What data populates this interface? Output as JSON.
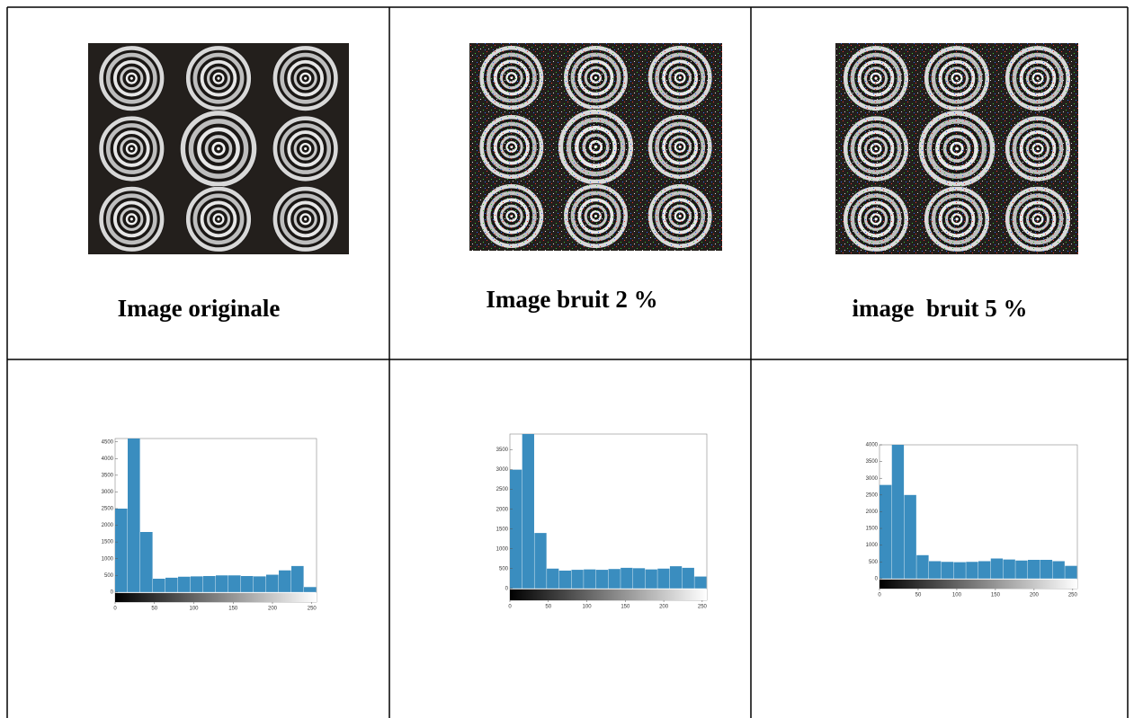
{
  "captions": [
    "Image originale",
    "Image bruit 2 %",
    "image  bruit 5 %"
  ],
  "chart_data": [
    {
      "type": "histogram",
      "color": "#3a8dbf",
      "bins": [
        0,
        16,
        32,
        48,
        64,
        80,
        96,
        112,
        128,
        144,
        160,
        176,
        192,
        208,
        224,
        240,
        256
      ],
      "values": [
        2500,
        4600,
        1800,
        400,
        430,
        460,
        470,
        480,
        500,
        500,
        480,
        470,
        520,
        650,
        780,
        150
      ],
      "xlim": [
        0,
        256
      ],
      "ylim": [
        -300,
        4600
      ],
      "xticks": [
        0,
        50,
        100,
        150,
        200,
        250
      ],
      "yticks": [
        0,
        500,
        1000,
        1500,
        2000,
        2500,
        3000,
        3500,
        4000,
        4500
      ]
    },
    {
      "type": "histogram",
      "color": "#3a8dbf",
      "bins": [
        0,
        16,
        32,
        48,
        64,
        80,
        96,
        112,
        128,
        144,
        160,
        176,
        192,
        208,
        224,
        240,
        256
      ],
      "values": [
        3000,
        3900,
        1400,
        500,
        450,
        470,
        480,
        470,
        490,
        520,
        510,
        480,
        500,
        560,
        520,
        300
      ],
      "xlim": [
        0,
        256
      ],
      "ylim": [
        -300,
        3900
      ],
      "xticks": [
        0,
        50,
        100,
        150,
        200,
        250
      ],
      "yticks": [
        0,
        500,
        1000,
        1500,
        2000,
        2500,
        3000,
        3500
      ]
    },
    {
      "type": "histogram",
      "color": "#3a8dbf",
      "bins": [
        0,
        16,
        32,
        48,
        64,
        80,
        96,
        112,
        128,
        144,
        160,
        176,
        192,
        208,
        224,
        240,
        256
      ],
      "values": [
        2800,
        4000,
        2500,
        700,
        520,
        500,
        490,
        500,
        520,
        600,
        570,
        540,
        560,
        560,
        520,
        380
      ],
      "xlim": [
        0,
        256
      ],
      "ylim": [
        -300,
        4000
      ],
      "xticks": [
        0,
        50,
        100,
        150,
        200,
        250
      ],
      "yticks": [
        0,
        500,
        1000,
        1500,
        2000,
        2500,
        3000,
        3500,
        4000
      ]
    }
  ]
}
